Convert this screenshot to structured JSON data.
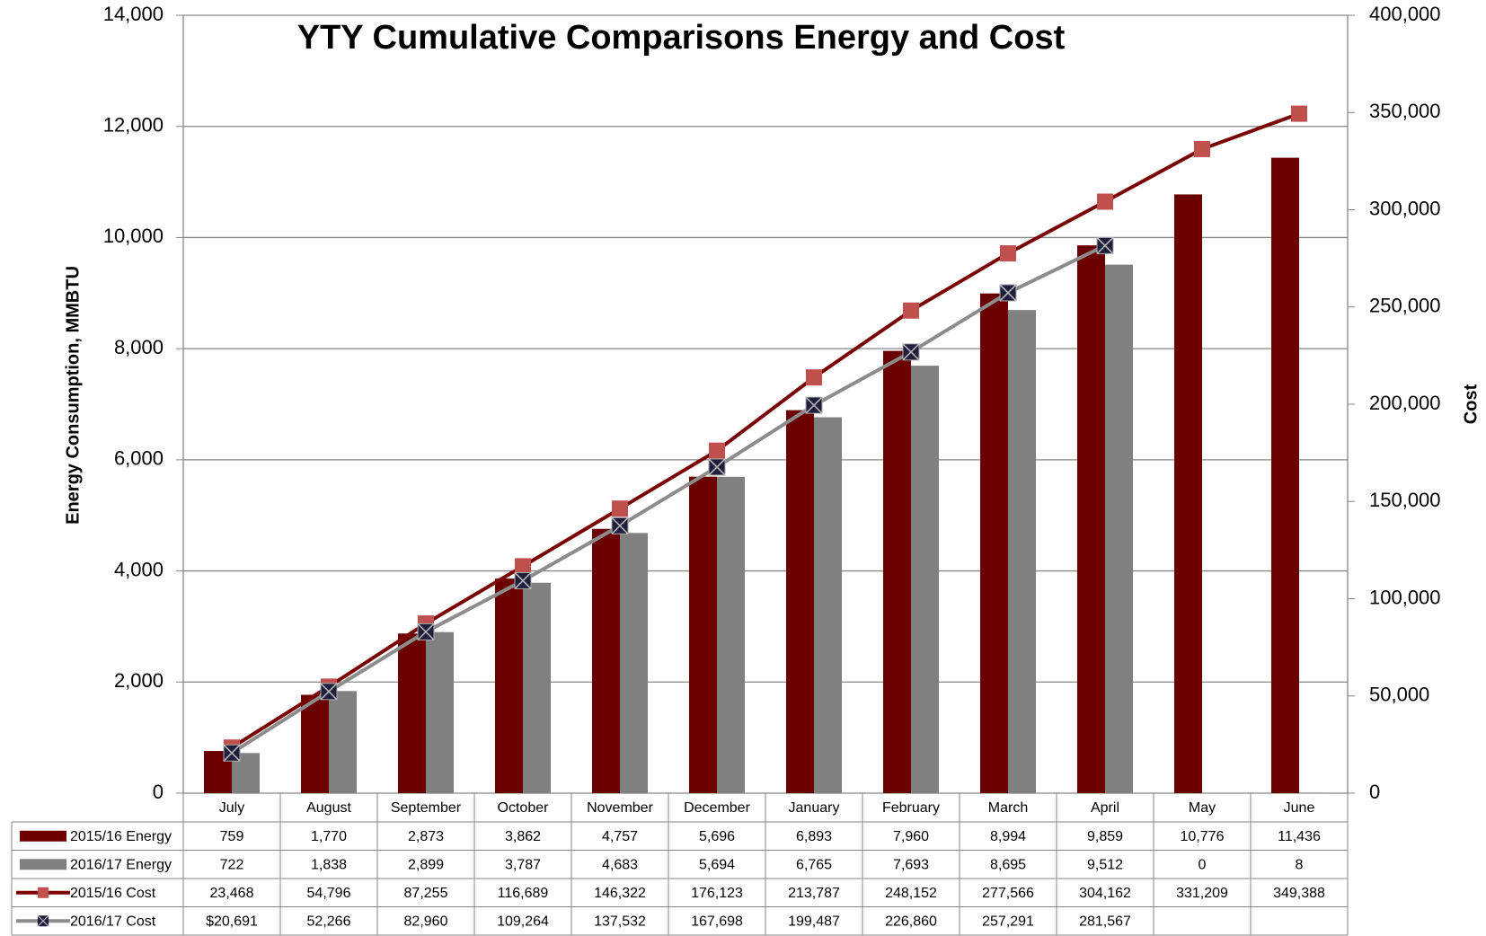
{
  "chart_data": {
    "type": "bar-line",
    "title": "YTY Cumulative Comparisons Energy and Cost",
    "y_label": "Energy Consumption, MMBTU",
    "y2_label": "Cost",
    "categories": [
      "July",
      "August",
      "September",
      "October",
      "November",
      "December",
      "January",
      "February",
      "March",
      "April",
      "May",
      "June"
    ],
    "ylim": [
      0,
      14000
    ],
    "yticks": [
      0,
      {
        "value": 2000,
        "label": "2,000"
      },
      {
        "value": 4000,
        "label": "4,000"
      },
      {
        "value": 6000,
        "label": "6,000"
      },
      {
        "value": 8000,
        "label": "8,000"
      },
      {
        "value": 10000,
        "label": "10,000"
      },
      {
        "value": 12000,
        "label": "12,000"
      },
      {
        "value": 14000,
        "label": "14,000"
      }
    ],
    "y2lim": [
      0,
      400000
    ],
    "y2ticks": [
      0,
      {
        "value": 50000,
        "label": "50,000"
      },
      {
        "value": 100000,
        "label": "100,000"
      },
      {
        "value": 150000,
        "label": "150,000"
      },
      {
        "value": 200000,
        "label": "200,000"
      },
      {
        "value": 250000,
        "label": "250,000"
      },
      {
        "value": 300000,
        "label": "300,000"
      },
      {
        "value": 350000,
        "label": "350,000"
      },
      {
        "value": 400000,
        "label": "400,000"
      }
    ],
    "grid": true,
    "series": [
      {
        "name": "2015/16 Energy",
        "kind": "bar",
        "color": "#6b0000",
        "values": [
          759,
          1770,
          2873,
          3862,
          4757,
          5696,
          6893,
          7960,
          8994,
          9859,
          10776,
          11436
        ],
        "value_labels": [
          "759",
          "1,770",
          "2,873",
          "3,862",
          "4,757",
          "5,696",
          "6,893",
          "7,960",
          "8,994",
          "9,859",
          "10,776",
          "11,436"
        ]
      },
      {
        "name": "2016/17 Energy",
        "kind": "bar",
        "color": "#808080",
        "values": [
          722,
          1838,
          2899,
          3787,
          4683,
          5694,
          6765,
          7693,
          8695,
          9512,
          0,
          8
        ],
        "value_labels": [
          "722",
          "1,838",
          "2,899",
          "3,787",
          "4,683",
          "5,694",
          "6,765",
          "7,693",
          "8,695",
          "9,512",
          "0",
          "8"
        ]
      },
      {
        "name": "2015/16 Cost",
        "kind": "line",
        "axis": "y2",
        "color": "#7a0000",
        "marker_color": "#c0504d",
        "marker": "square",
        "values": [
          23468,
          54796,
          87255,
          116689,
          146322,
          176123,
          213787,
          248152,
          277566,
          304162,
          331209,
          349388
        ],
        "value_labels": [
          "23,468",
          "54,796",
          "87,255",
          "116,689",
          "146,322",
          "176,123",
          "213,787",
          "248,152",
          "277,566",
          "304,162",
          "331,209",
          "349,388"
        ]
      },
      {
        "name": "2016/17 Cost",
        "kind": "line",
        "axis": "y2",
        "color": "#8c8c8c",
        "marker_color": "#1f1f3d",
        "marker": "x-square",
        "values": [
          20691,
          52266,
          82960,
          109264,
          137532,
          167698,
          199487,
          226860,
          257291,
          281567,
          null,
          null
        ],
        "value_labels": [
          "$20,691",
          "52,266",
          "82,960",
          "109,264",
          "137,532",
          "167,698",
          "199,487",
          "226,860",
          "257,291",
          "281,567",
          null,
          null
        ]
      }
    ]
  }
}
